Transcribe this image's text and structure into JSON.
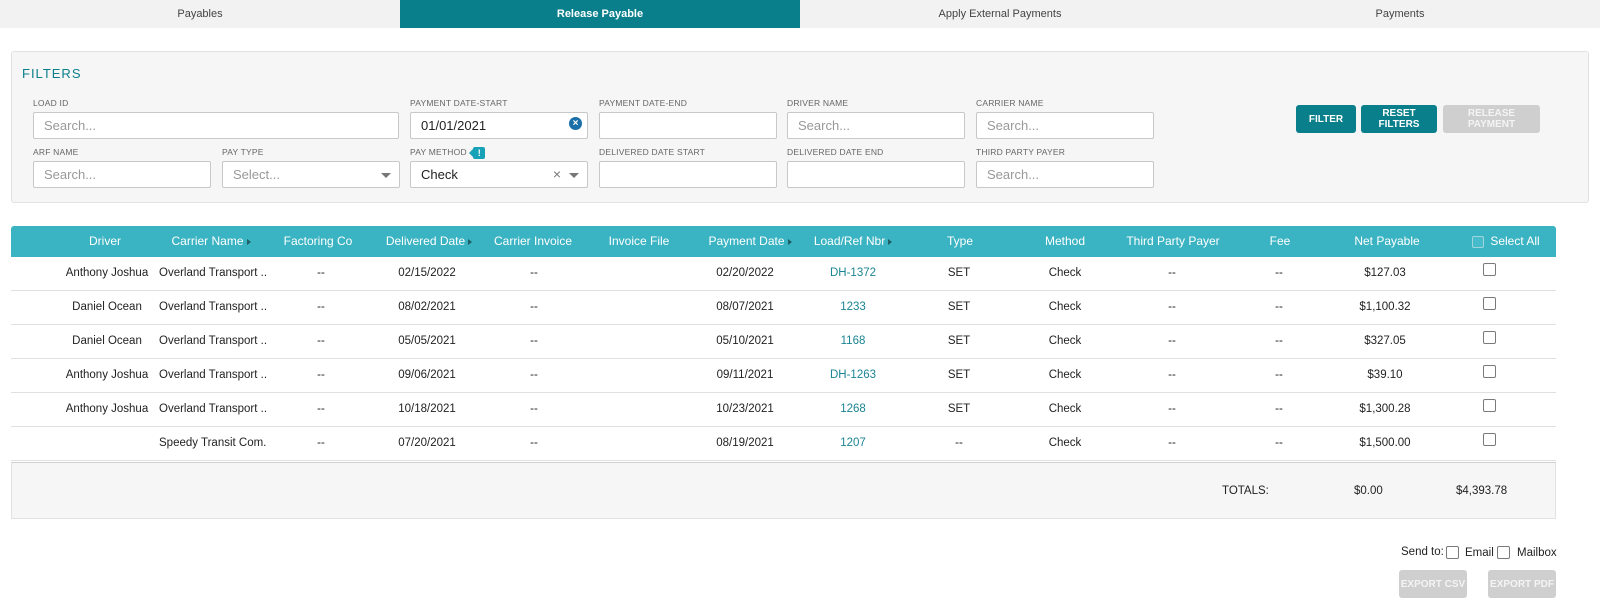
{
  "tabs": [
    {
      "label": "Payables",
      "active": false
    },
    {
      "label": "Release Payable",
      "active": true
    },
    {
      "label": "Apply External Payments",
      "active": false
    },
    {
      "label": "Payments",
      "active": false
    }
  ],
  "filters": {
    "title": "FILTERS",
    "load_id": {
      "label": "LOAD ID",
      "placeholder": "Search...",
      "value": ""
    },
    "payment_date_start": {
      "label": "PAYMENT DATE-START",
      "value": "01/01/2021"
    },
    "payment_date_end": {
      "label": "PAYMENT DATE-END",
      "value": ""
    },
    "driver_name": {
      "label": "DRIVER NAME",
      "placeholder": "Search...",
      "value": ""
    },
    "carrier_name": {
      "label": "CARRIER NAME",
      "placeholder": "Search...",
      "value": ""
    },
    "arf_name": {
      "label": "ARF NAME",
      "placeholder": "Search...",
      "value": ""
    },
    "pay_type": {
      "label": "PAY TYPE",
      "placeholder": "Select..."
    },
    "pay_method": {
      "label": "PAY METHOD",
      "value": "Check",
      "info_badge": "!"
    },
    "delivered_date_start": {
      "label": "DELIVERED DATE START",
      "value": ""
    },
    "delivered_date_end": {
      "label": "DELIVERED DATE END",
      "value": ""
    },
    "third_party_payer": {
      "label": "THIRD PARTY PAYER",
      "placeholder": "Search...",
      "value": ""
    },
    "buttons": {
      "filter": "FILTER",
      "reset": "RESET FILTERS",
      "release": "RELEASE PAYMENT"
    }
  },
  "table": {
    "columns": [
      "Driver",
      "Carrier Name",
      "Factoring Co",
      "Delivered Date",
      "Carrier Invoice",
      "Invoice File",
      "Payment Date",
      "Load/Ref Nbr",
      "Type",
      "Method",
      "Third Party Payer",
      "Fee",
      "Net Payable",
      "Select All"
    ],
    "rows": [
      {
        "driver": "Anthony Joshua",
        "carrier": "Overland Transport ...",
        "factoring": "--",
        "delivered": "02/15/2022",
        "invoice": "--",
        "file": "",
        "payment": "02/20/2022",
        "load": "DH-1372",
        "type": "SET",
        "method": "Check",
        "tpp": "--",
        "fee": "--",
        "net": "$127.03",
        "selected": false
      },
      {
        "driver": "Daniel Ocean",
        "carrier": "Overland Transport ...",
        "factoring": "--",
        "delivered": "08/02/2021",
        "invoice": "--",
        "file": "",
        "payment": "08/07/2021",
        "load": "1233",
        "type": "SET",
        "method": "Check",
        "tpp": "--",
        "fee": "--",
        "net": "$1,100.32",
        "selected": false
      },
      {
        "driver": "Daniel Ocean",
        "carrier": "Overland Transport ...",
        "factoring": "--",
        "delivered": "05/05/2021",
        "invoice": "--",
        "file": "",
        "payment": "05/10/2021",
        "load": "1168",
        "type": "SET",
        "method": "Check",
        "tpp": "--",
        "fee": "--",
        "net": "$327.05",
        "selected": false
      },
      {
        "driver": "Anthony Joshua",
        "carrier": "Overland Transport ...",
        "factoring": "--",
        "delivered": "09/06/2021",
        "invoice": "--",
        "file": "",
        "payment": "09/11/2021",
        "load": "DH-1263",
        "type": "SET",
        "method": "Check",
        "tpp": "--",
        "fee": "--",
        "net": "$39.10",
        "selected": false
      },
      {
        "driver": "Anthony Joshua",
        "carrier": "Overland Transport ...",
        "factoring": "--",
        "delivered": "10/18/2021",
        "invoice": "--",
        "file": "",
        "payment": "10/23/2021",
        "load": "1268",
        "type": "SET",
        "method": "Check",
        "tpp": "--",
        "fee": "--",
        "net": "$1,300.28",
        "selected": false
      },
      {
        "driver": "",
        "carrier": "Speedy Transit Com...",
        "factoring": "--",
        "delivered": "07/20/2021",
        "invoice": "--",
        "file": "",
        "payment": "08/19/2021",
        "load": "1207",
        "type": "--",
        "method": "Check",
        "tpp": "--",
        "fee": "--",
        "net": "$1,500.00",
        "selected": false
      }
    ],
    "totals": {
      "label": "TOTALS:",
      "fee_total": "$0.00",
      "net_total": "$4,393.78"
    }
  },
  "footer": {
    "send_to": "Send to:",
    "email": "Email",
    "mailbox": "Mailbox",
    "export_csv": "EXPORT CSV",
    "export_pdf": "EXPORT PDF"
  },
  "colors": {
    "primary": "#0a7f8c",
    "header": "#3ab3c2",
    "link": "#1b8494",
    "disabled": "#cfcfcf"
  }
}
